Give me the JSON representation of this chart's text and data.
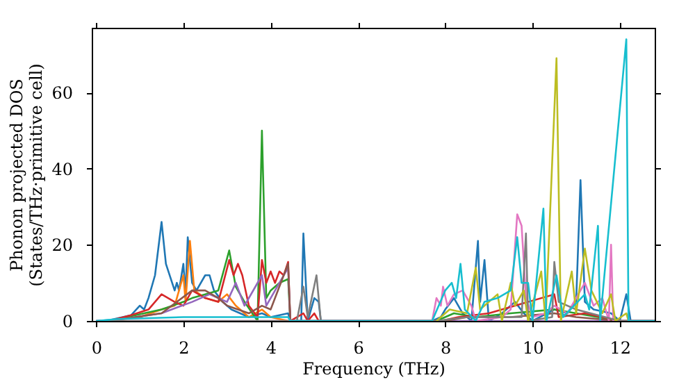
{
  "chart_data": {
    "type": "line",
    "xlabel": "Frequency (THz)",
    "ylabel": "Phonon projected DOS\n(States/THz·primitive cell)",
    "xlim": [
      -0.1,
      12.8
    ],
    "ylim": [
      0,
      77
    ],
    "xticks": [
      0,
      2,
      4,
      6,
      8,
      10,
      12
    ],
    "yticks": [
      0,
      20,
      40,
      60
    ],
    "grid": false,
    "legend": false,
    "marker": "none",
    "line_style": "solid",
    "series": [
      {
        "color": "#1f77b4",
        "x": [
          0,
          0.3,
          0.8,
          1.0,
          1.1,
          1.2,
          1.35,
          1.5,
          1.6,
          1.8,
          1.85,
          1.9,
          2.0,
          2.05,
          2.1,
          2.2,
          2.3,
          2.5,
          2.6,
          2.7,
          2.9,
          3.1,
          3.5,
          3.8,
          4.0,
          4.4,
          4.45,
          4.7,
          4.75,
          4.85,
          5.0,
          5.1,
          5.15,
          7.7,
          7.9,
          8.0,
          8.2,
          8.4,
          8.6,
          8.75,
          8.8,
          8.9,
          9.0,
          9.3,
          9.6,
          9.8,
          10.0,
          10.5,
          10.8,
          11.0,
          11.1,
          11.2,
          11.4,
          11.8,
          12.0,
          12.15,
          12.25,
          12.8
        ],
        "values": [
          0,
          0.2,
          1.5,
          4,
          3,
          6,
          12,
          26,
          15,
          8,
          10,
          8,
          15,
          7,
          22,
          10,
          8,
          12,
          12,
          8,
          5,
          3,
          1,
          2,
          1,
          2,
          0,
          0,
          23,
          0,
          6,
          5,
          0,
          0,
          1,
          3,
          6,
          2,
          0,
          21,
          5,
          16,
          0,
          2,
          5,
          2,
          0,
          3,
          2,
          5,
          37,
          5,
          3,
          2,
          0,
          7,
          0,
          0
        ]
      },
      {
        "color": "#ff7f0e",
        "x": [
          0.3,
          1.0,
          1.5,
          1.8,
          2.0,
          2.05,
          2.15,
          2.25,
          2.5,
          2.8,
          3.0,
          3.2,
          3.5,
          3.8,
          4.0,
          4.4
        ],
        "values": [
          0,
          1,
          3,
          4,
          12,
          5,
          21,
          8,
          6,
          5,
          7,
          4,
          1,
          3,
          1,
          0
        ]
      },
      {
        "color": "#2ca02c",
        "x": [
          0.3,
          1.5,
          2.0,
          2.2,
          2.5,
          2.8,
          3.05,
          3.2,
          3.4,
          3.7,
          3.8,
          3.9,
          4.0,
          4.2,
          4.4,
          4.45,
          7.8,
          8.2,
          8.7,
          9.5,
          10.5,
          11.0,
          12.0,
          12.8
        ],
        "values": [
          0,
          3,
          5,
          6,
          7,
          8,
          18.5,
          9,
          5,
          0,
          50,
          6,
          8,
          10,
          11,
          0,
          0,
          2,
          1,
          2,
          3,
          2,
          0,
          0
        ]
      },
      {
        "color": "#d62728",
        "x": [
          0.3,
          0.8,
          1.2,
          1.5,
          1.8,
          2.0,
          2.2,
          2.5,
          2.8,
          3.05,
          3.15,
          3.25,
          3.35,
          3.5,
          3.7,
          3.8,
          3.9,
          4.0,
          4.1,
          4.2,
          4.3,
          4.4,
          4.45,
          4.75,
          4.85,
          5.0,
          5.1,
          7.9,
          8.3,
          9.0,
          10.5,
          10.6,
          11.2,
          12.0,
          12.8
        ],
        "values": [
          0,
          1.5,
          3,
          7,
          5,
          4,
          8,
          6,
          5,
          16,
          12,
          15,
          12,
          4,
          1,
          16,
          10,
          13,
          10,
          13,
          12,
          15.5,
          0,
          2,
          0,
          2,
          0,
          0,
          1,
          2,
          7,
          1,
          2,
          0,
          0
        ]
      },
      {
        "color": "#9467bd",
        "x": [
          0.3,
          1.5,
          2.2,
          2.6,
          3.0,
          3.2,
          3.4,
          3.8,
          3.9,
          4.4,
          4.45,
          12.8
        ],
        "values": [
          0,
          2,
          5,
          7,
          5,
          10,
          4,
          12,
          4,
          14,
          0,
          0
        ]
      },
      {
        "color": "#8c564b",
        "x": [
          0.3,
          1.5,
          2.2,
          2.5,
          2.8,
          3.0,
          3.5,
          3.8,
          4.0,
          4.4,
          4.45,
          8.0,
          8.5,
          9.5,
          10.5,
          11.0,
          12.0,
          12.8
        ],
        "values": [
          0,
          2,
          8,
          8,
          6,
          4,
          2,
          4,
          3,
          15,
          0,
          0,
          1,
          1,
          2,
          1,
          0,
          0
        ]
      },
      {
        "color": "#e377c2",
        "x": [
          0,
          7.7,
          7.8,
          7.9,
          7.95,
          8.05,
          8.2,
          8.4,
          8.6,
          8.7,
          9.3,
          9.5,
          9.65,
          9.75,
          9.85,
          10.0,
          10.3,
          10.5,
          10.8,
          11.0,
          11.2,
          11.4,
          11.6,
          11.75,
          11.8,
          11.85,
          12.8
        ],
        "values": [
          0,
          0,
          6,
          4,
          9,
          4,
          7,
          8,
          4,
          0,
          1,
          3,
          28,
          25,
          6,
          1,
          2,
          4,
          2,
          6,
          10,
          4,
          6,
          0,
          20,
          0,
          0
        ]
      },
      {
        "color": "#7f7f7f",
        "x": [
          0,
          4.6,
          4.75,
          4.85,
          5.05,
          5.15,
          7.8,
          8.5,
          9.75,
          9.85,
          9.9,
          10.45,
          10.5,
          10.6,
          11.0,
          12.0,
          12.8
        ],
        "values": [
          0,
          0,
          9,
          1,
          12,
          0,
          0,
          1,
          1,
          23,
          0,
          1,
          15.5,
          5,
          3,
          0,
          0
        ]
      },
      {
        "color": "#bcbd22",
        "x": [
          7.8,
          8.1,
          8.5,
          8.7,
          8.8,
          9.2,
          9.3,
          9.5,
          9.6,
          9.8,
          9.9,
          10.2,
          10.3,
          10.55,
          10.65,
          10.9,
          11.0,
          11.2,
          11.35,
          11.6,
          11.8,
          11.9,
          12.15,
          12.2
        ],
        "values": [
          0,
          3,
          2,
          14,
          3,
          7,
          0,
          10,
          4,
          8,
          0,
          13,
          0,
          69,
          0,
          13,
          2,
          19,
          8,
          2,
          7,
          0,
          2,
          0
        ]
      },
      {
        "color": "#17becf",
        "x": [
          0,
          0.5,
          2.0,
          4.4,
          4.45,
          7.7,
          8.0,
          8.15,
          8.25,
          8.35,
          8.45,
          8.7,
          8.9,
          9.2,
          9.5,
          9.65,
          9.75,
          9.9,
          10.0,
          10.25,
          10.32,
          10.55,
          10.7,
          11.2,
          11.3,
          11.5,
          11.55,
          12.15,
          12.2,
          12.8
        ],
        "values": [
          0,
          0.5,
          1,
          1,
          0,
          0,
          8,
          10,
          6,
          15,
          3,
          0,
          5,
          6,
          8,
          22,
          10,
          10,
          0,
          29.5,
          0,
          12,
          1,
          7,
          3,
          25,
          0,
          74,
          0,
          0
        ]
      }
    ]
  }
}
